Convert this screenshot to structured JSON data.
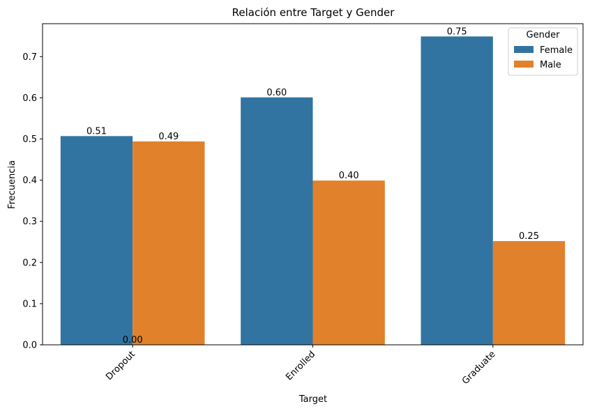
{
  "chart_data": {
    "type": "bar",
    "title": "Relación entre Target y Gender",
    "xlabel": "Target",
    "ylabel": "Frecuencia",
    "categories": [
      "Dropout",
      "Enrolled",
      "Graduate"
    ],
    "series": [
      {
        "name": "Female",
        "values": [
          0.507,
          0.601,
          0.749
        ],
        "labels": [
          "0.51",
          "0.60",
          "0.75"
        ],
        "color": "#3274a1"
      },
      {
        "name": "Male",
        "values": [
          0.494,
          0.399,
          0.252
        ],
        "labels": [
          "0.49",
          "0.40",
          "0.25"
        ],
        "color": "#e1812c"
      }
    ],
    "extra_labels": [
      "0.00"
    ],
    "ylim": [
      0,
      0.78
    ],
    "yticks": [
      0.0,
      0.1,
      0.2,
      0.3,
      0.4,
      0.5,
      0.6,
      0.7
    ],
    "ytick_labels": [
      "0.0",
      "0.1",
      "0.2",
      "0.3",
      "0.4",
      "0.5",
      "0.6",
      "0.7"
    ],
    "xtick_rotation": 45,
    "legend": {
      "title": "Gender",
      "position": "top-right"
    },
    "grid": false
  }
}
